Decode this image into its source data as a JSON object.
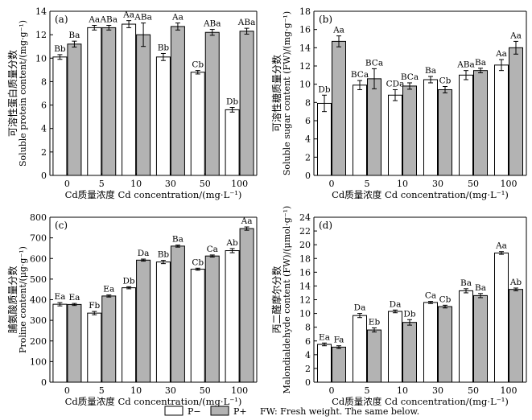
{
  "legend": {
    "p_minus": "P−",
    "p_plus": "P+",
    "note": "FW: Fresh weight. The same below."
  },
  "colors": {
    "p_minus": "#ffffff",
    "p_plus": "#b3b3b3",
    "stroke": "#000000"
  },
  "chart_data": [
    {
      "type": "bar",
      "panel": "(a)",
      "categories": [
        "0",
        "5",
        "10",
        "30",
        "50",
        "100"
      ],
      "xlabel": "Cd质量浓度 Cd concentration/(mg·L⁻¹)",
      "ylabel_cn": "可溶性蛋白质量分数",
      "ylabel_en": "Soluble protein content/(mg·g⁻¹)",
      "ylim": [
        0,
        14
      ],
      "yticks": [
        0,
        2,
        4,
        6,
        8,
        10,
        12,
        14
      ],
      "series": [
        {
          "name": "P−",
          "values": [
            10.1,
            12.6,
            12.9,
            10.1,
            8.8,
            5.6
          ],
          "errors": [
            0.2,
            0.2,
            0.3,
            0.3,
            0.15,
            0.2
          ],
          "labels": [
            "Bb",
            "Aa",
            "Aa",
            "Bb",
            "Cb",
            "Db"
          ]
        },
        {
          "name": "P+",
          "values": [
            11.2,
            12.6,
            12.0,
            12.7,
            12.2,
            12.3
          ],
          "errors": [
            0.25,
            0.2,
            1.0,
            0.3,
            0.25,
            0.25
          ],
          "labels": [
            "Ba",
            "ABa",
            "ABa",
            "Aa",
            "ABa",
            "ABa"
          ]
        }
      ]
    },
    {
      "type": "bar",
      "panel": "(b)",
      "categories": [
        "0",
        "5",
        "10",
        "30",
        "50",
        "100"
      ],
      "xlabel": "Cd质量浓度 Cd concentration/(mg·L⁻¹)",
      "ylabel_cn": "可溶性糖质量分数",
      "ylabel_en": "Soluble sugar content (FW)/(mg·g⁻¹)",
      "ylim": [
        0,
        18
      ],
      "yticks": [
        0,
        2,
        4,
        6,
        8,
        10,
        12,
        14,
        16,
        18
      ],
      "series": [
        {
          "name": "P−",
          "values": [
            7.9,
            9.9,
            8.8,
            10.5,
            11.0,
            12.1
          ],
          "errors": [
            0.9,
            0.5,
            0.6,
            0.35,
            0.5,
            0.6
          ],
          "labels": [
            "Db",
            "BCa",
            "CDa",
            "Ba",
            "ABa",
            "Aa"
          ]
        },
        {
          "name": "P+",
          "values": [
            14.7,
            10.6,
            9.8,
            9.4,
            11.5,
            14.0
          ],
          "errors": [
            0.6,
            1.1,
            0.35,
            0.35,
            0.25,
            0.7
          ],
          "labels": [
            "Aa",
            "BCa",
            "BCa",
            "Cb",
            "Ba",
            "Aa"
          ]
        }
      ]
    },
    {
      "type": "bar",
      "panel": "(c)",
      "categories": [
        "0",
        "5",
        "10",
        "30",
        "50",
        "100"
      ],
      "xlabel": "Cd质量浓度 Cd concentration/(mg·L⁻¹)",
      "ylabel_cn": "脯氨酸质量分数",
      "ylabel_en": "Proline content/(μg·g⁻¹)",
      "ylim": [
        0,
        800
      ],
      "yticks": [
        0,
        100,
        200,
        300,
        400,
        500,
        600,
        700,
        800
      ],
      "series": [
        {
          "name": "P−",
          "values": [
            378,
            335,
            458,
            583,
            548,
            638
          ],
          "errors": [
            8,
            8,
            5,
            8,
            5,
            10
          ],
          "labels": [
            "Ea",
            "Fb",
            "Db",
            "Bb",
            "Cb",
            "Ab"
          ]
        },
        {
          "name": "P+",
          "values": [
            377,
            418,
            592,
            660,
            612,
            745
          ],
          "errors": [
            5,
            5,
            5,
            5,
            5,
            8
          ],
          "labels": [
            "Ea",
            "Ea",
            "Da",
            "Ba",
            "Ca",
            "Aa"
          ]
        }
      ]
    },
    {
      "type": "bar",
      "panel": "(d)",
      "categories": [
        "0",
        "5",
        "10",
        "30",
        "50",
        "100"
      ],
      "xlabel": "Cd质量浓度 Cd concentration/(mg·L⁻¹)",
      "ylabel_cn": "丙二醛摩尔分数",
      "ylabel_en": "Malondialdehyde content (FW)/(μmol·g⁻¹)",
      "ylim": [
        0,
        24
      ],
      "yticks": [
        0,
        2,
        4,
        6,
        8,
        10,
        12,
        14,
        16,
        18,
        20,
        22,
        24
      ],
      "series": [
        {
          "name": "P−",
          "values": [
            5.5,
            9.7,
            10.3,
            11.6,
            13.3,
            18.8
          ],
          "errors": [
            0.2,
            0.3,
            0.2,
            0.15,
            0.3,
            0.2
          ],
          "labels": [
            "Ea",
            "Da",
            "Da",
            "Ca",
            "Ba",
            "Aa"
          ]
        },
        {
          "name": "P+",
          "values": [
            5.1,
            7.6,
            8.7,
            11.0,
            12.6,
            13.5
          ],
          "errors": [
            0.2,
            0.3,
            0.4,
            0.2,
            0.3,
            0.2
          ],
          "labels": [
            "Fa",
            "Eb",
            "Db",
            "Cb",
            "Ba",
            "Ab"
          ]
        }
      ]
    }
  ]
}
